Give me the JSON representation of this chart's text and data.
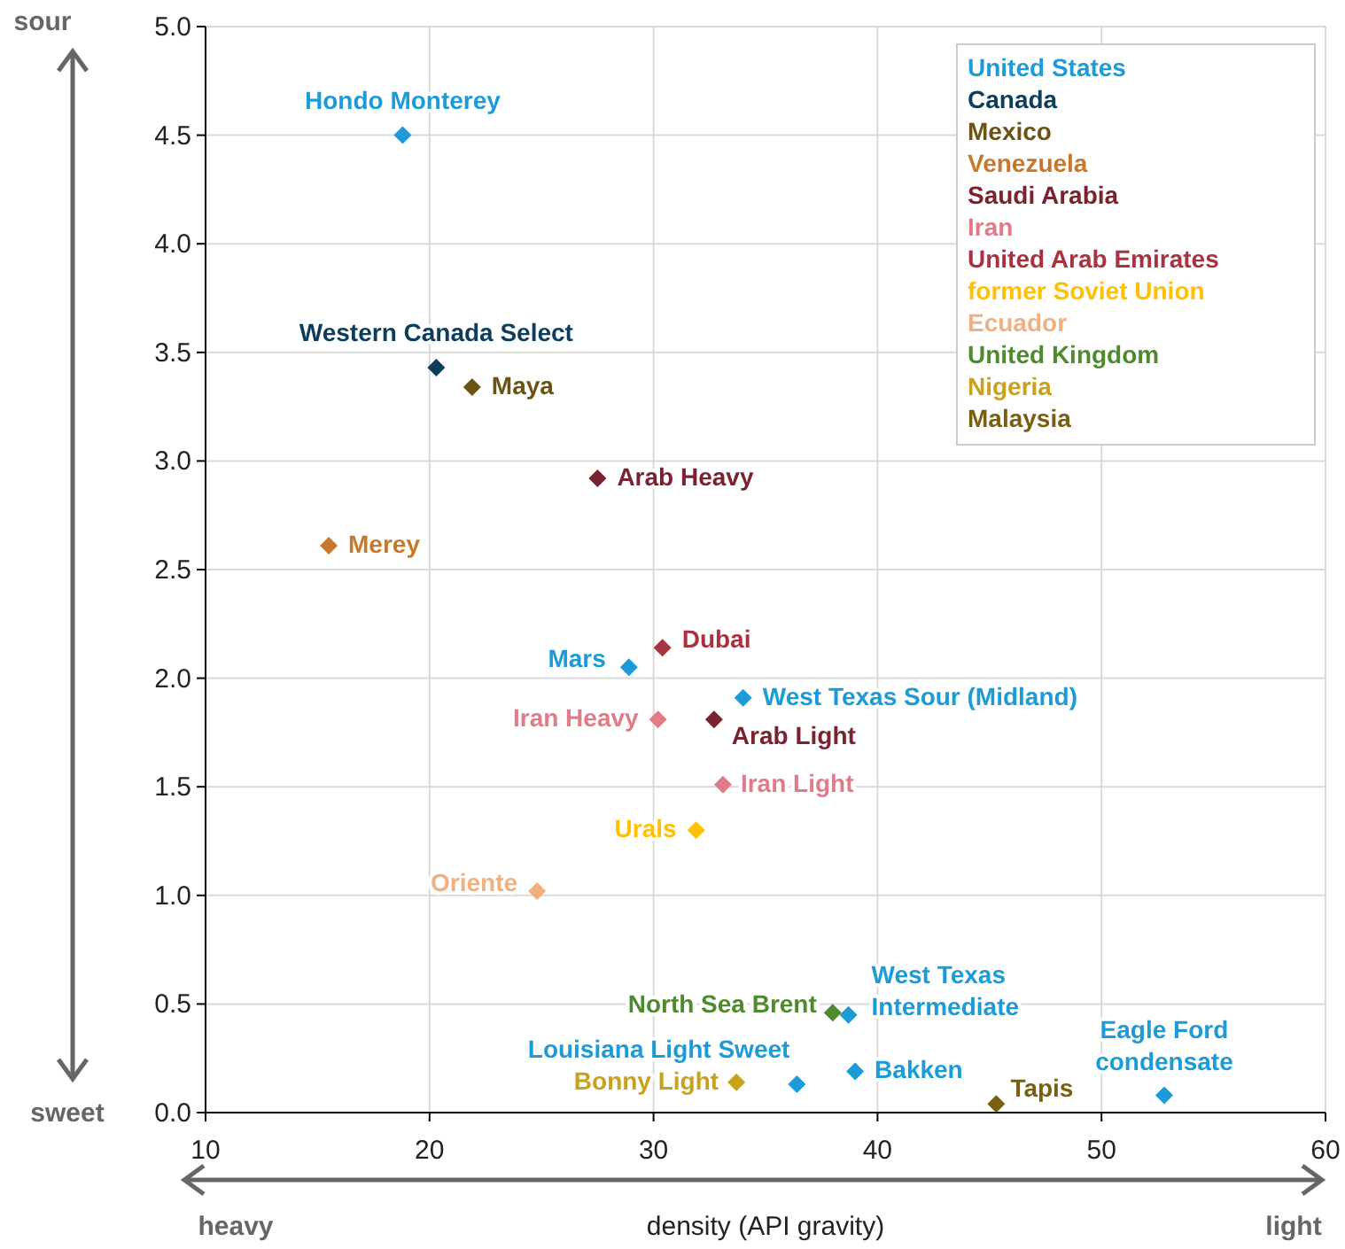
{
  "chart_data": {
    "type": "scatter",
    "xlabel": "density (API gravity)",
    "xlim": [
      10,
      60
    ],
    "xticks": [
      10,
      20,
      30,
      40,
      50,
      60
    ],
    "ylim": [
      0,
      5
    ],
    "yticks": [
      {
        "value": 0,
        "label": "0.0"
      },
      {
        "value": 0.5,
        "label": "0.5"
      },
      {
        "value": 1,
        "label": "1.0"
      },
      {
        "value": 1.5,
        "label": "1.5"
      },
      {
        "value": 2,
        "label": "2.0"
      },
      {
        "value": 2.5,
        "label": "2.5"
      },
      {
        "value": 3,
        "label": "3.0"
      },
      {
        "value": 3.5,
        "label": "3.5"
      },
      {
        "value": 4,
        "label": "4.0"
      },
      {
        "value": 4.5,
        "label": "4.5"
      },
      {
        "value": 5,
        "label": "5.0"
      }
    ],
    "grid": true,
    "legend": "top right",
    "marker": "diamond",
    "series": [
      {
        "name": "United States",
        "color": "#1b9bd7",
        "x": [
          18.8,
          28.9,
          34.0,
          38.7,
          36.4,
          39.0,
          52.8
        ],
        "values": [
          4.5,
          2.05,
          1.91,
          0.45,
          0.13,
          0.19,
          0.08
        ]
      },
      {
        "name": "Canada",
        "color": "#0c3d5a",
        "x": [
          20.3
        ],
        "values": [
          3.43
        ]
      },
      {
        "name": "Mexico",
        "color": "#6b5314",
        "x": [
          21.9
        ],
        "values": [
          3.34
        ]
      },
      {
        "name": "Venezuela",
        "color": "#c8782b",
        "x": [
          15.5
        ],
        "values": [
          2.61
        ]
      },
      {
        "name": "Saudi Arabia",
        "color": "#7b2231",
        "x": [
          27.5,
          32.7
        ],
        "values": [
          2.92,
          1.81
        ]
      },
      {
        "name": "Iran",
        "color": "#e07b87",
        "x": [
          30.2,
          33.1
        ],
        "values": [
          1.81,
          1.51
        ]
      },
      {
        "name": "United Arab Emirates",
        "color": "#a8323f",
        "x": [
          30.4
        ],
        "values": [
          2.14
        ]
      },
      {
        "name": "former Soviet Union",
        "color": "#ffc000",
        "x": [
          31.9
        ],
        "values": [
          1.3
        ]
      },
      {
        "name": "Ecuador",
        "color": "#f0b080",
        "x": [
          24.8
        ],
        "values": [
          1.02
        ]
      },
      {
        "name": "United Kingdom",
        "color": "#4f8a2e",
        "x": [
          38.0
        ],
        "values": [
          0.46
        ]
      },
      {
        "name": "Nigeria",
        "color": "#c9a11a",
        "x": [
          33.7
        ],
        "values": [
          0.14
        ]
      },
      {
        "name": "Malaysia",
        "color": "#7a5f10",
        "x": [
          45.3
        ],
        "values": [
          0.04
        ]
      }
    ],
    "annotations": [
      "sour",
      "sweet",
      "heavy",
      "light",
      {
        "text": "Hondo Monterey",
        "x": 18.8,
        "y": 4.5
      },
      {
        "text": "Western Canada Select",
        "x": 20.3,
        "y": 3.43
      },
      {
        "text": "Maya",
        "x": 21.9,
        "y": 3.34
      },
      {
        "text": "Arab Heavy",
        "x": 27.5,
        "y": 2.92
      },
      {
        "text": "Merey",
        "x": 15.5,
        "y": 2.61
      },
      {
        "text": "Mars",
        "x": 28.9,
        "y": 2.05
      },
      {
        "text": "Dubai",
        "x": 30.4,
        "y": 2.14
      },
      {
        "text": "West Texas Sour (Midland)",
        "x": 34.0,
        "y": 1.91
      },
      {
        "text": "Iran Heavy",
        "x": 30.2,
        "y": 1.81
      },
      {
        "text": "Arab Light",
        "x": 32.7,
        "y": 1.81
      },
      {
        "text": "Iran Light",
        "x": 33.1,
        "y": 1.51
      },
      {
        "text": "Urals",
        "x": 31.9,
        "y": 1.3
      },
      {
        "text": "Oriente",
        "x": 24.8,
        "y": 1.02
      },
      {
        "text": "North Sea Brent",
        "x": 38.0,
        "y": 0.46
      },
      {
        "text": "West Texas\nIntermediate",
        "x": 38.7,
        "y": 0.45
      },
      {
        "text": "Louisiana Light Sweet",
        "x": 36.4,
        "y": 0.13
      },
      {
        "text": "Bonny Light",
        "x": 33.7,
        "y": 0.14
      },
      {
        "text": "Bakken",
        "x": 39.0,
        "y": 0.19
      },
      {
        "text": "Tapis",
        "x": 45.3,
        "y": 0.04
      },
      {
        "text": "Eagle Ford\ncondensate",
        "x": 52.8,
        "y": 0.08
      }
    ]
  }
}
